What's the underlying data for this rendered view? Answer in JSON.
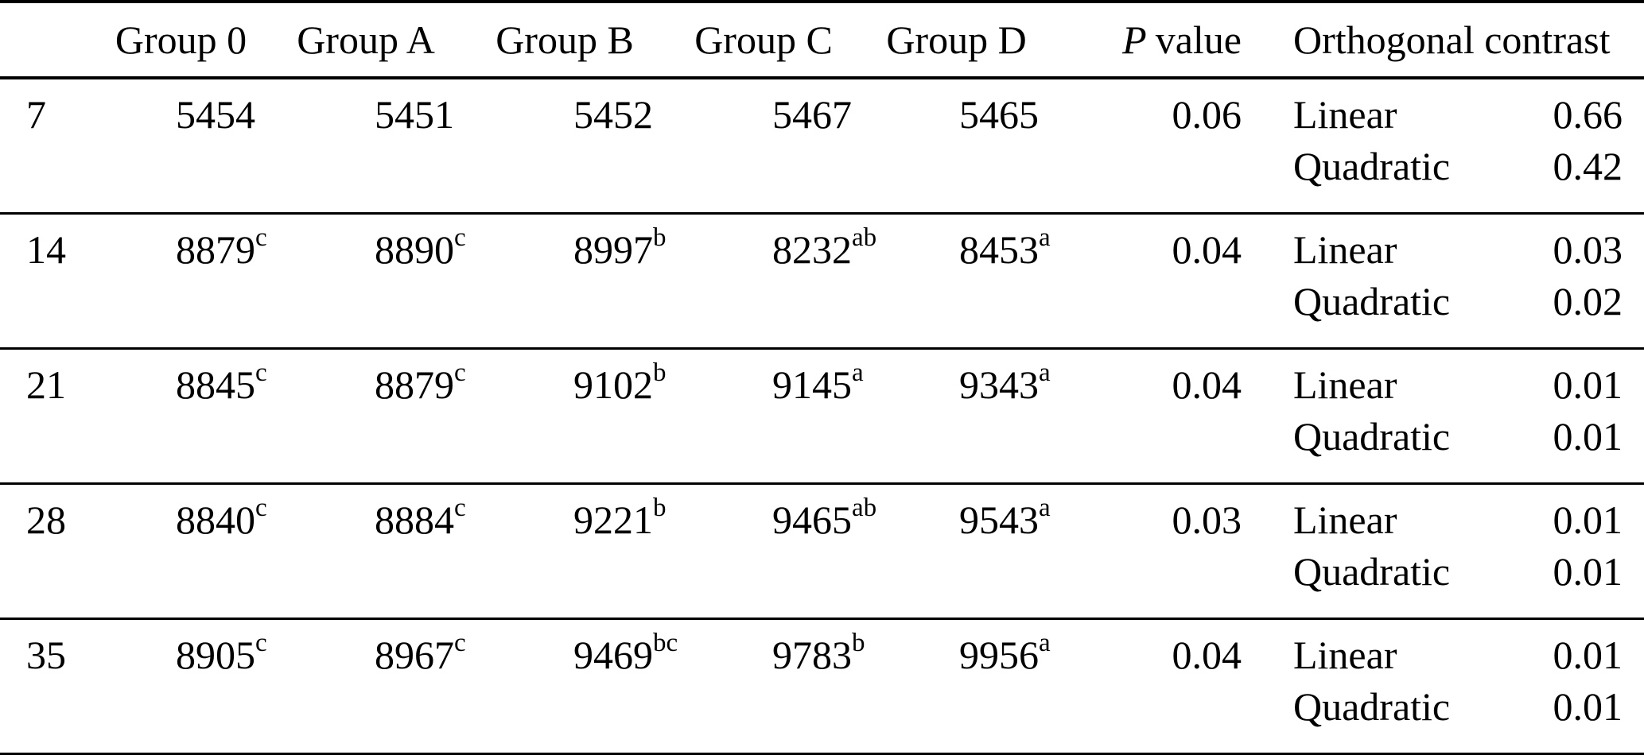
{
  "header": {
    "day": "",
    "groups": [
      "Group 0",
      "Group A",
      "Group B",
      "Group C",
      "Group D"
    ],
    "p_italic": "P",
    "p_rest": "value",
    "contrast": "Orthogonal contrast"
  },
  "rows": [
    {
      "day": "7",
      "values": [
        {
          "v": "5454",
          "sup": ""
        },
        {
          "v": "5451",
          "sup": ""
        },
        {
          "v": "5452",
          "sup": ""
        },
        {
          "v": "5467",
          "sup": ""
        },
        {
          "v": "5465",
          "sup": ""
        }
      ],
      "p": "0.06",
      "contrasts": [
        {
          "label": "Linear",
          "value": "0.66"
        },
        {
          "label": "Quadratic",
          "value": "0.42"
        }
      ]
    },
    {
      "day": "14",
      "values": [
        {
          "v": "8879",
          "sup": "c"
        },
        {
          "v": "8890",
          "sup": "c"
        },
        {
          "v": "8997",
          "sup": "b"
        },
        {
          "v": "8232",
          "sup": "ab"
        },
        {
          "v": "8453",
          "sup": "a"
        }
      ],
      "p": "0.04",
      "contrasts": [
        {
          "label": "Linear",
          "value": "0.03"
        },
        {
          "label": "Quadratic",
          "value": "0.02"
        }
      ]
    },
    {
      "day": "21",
      "values": [
        {
          "v": "8845",
          "sup": "c"
        },
        {
          "v": "8879",
          "sup": "c"
        },
        {
          "v": "9102",
          "sup": "b"
        },
        {
          "v": "9145",
          "sup": "a"
        },
        {
          "v": "9343",
          "sup": "a"
        }
      ],
      "p": "0.04",
      "contrasts": [
        {
          "label": "Linear",
          "value": "0.01"
        },
        {
          "label": "Quadratic",
          "value": "0.01"
        }
      ]
    },
    {
      "day": "28",
      "values": [
        {
          "v": "8840",
          "sup": "c"
        },
        {
          "v": "8884",
          "sup": "c"
        },
        {
          "v": "9221",
          "sup": "b"
        },
        {
          "v": "9465",
          "sup": "ab"
        },
        {
          "v": "9543",
          "sup": "a"
        }
      ],
      "p": "0.03",
      "contrasts": [
        {
          "label": "Linear",
          "value": "0.01"
        },
        {
          "label": "Quadratic",
          "value": "0.01"
        }
      ]
    },
    {
      "day": "35",
      "values": [
        {
          "v": "8905",
          "sup": "c"
        },
        {
          "v": "8967",
          "sup": "c"
        },
        {
          "v": "9469",
          "sup": "bc"
        },
        {
          "v": "9783",
          "sup": "b"
        },
        {
          "v": "9956",
          "sup": "a"
        }
      ],
      "p": "0.04",
      "contrasts": [
        {
          "label": "Linear",
          "value": "0.01"
        },
        {
          "label": "Quadratic",
          "value": "0.01"
        }
      ]
    }
  ],
  "colors": {
    "text": "#000000",
    "background": "#ffffff",
    "rule": "#000000"
  }
}
